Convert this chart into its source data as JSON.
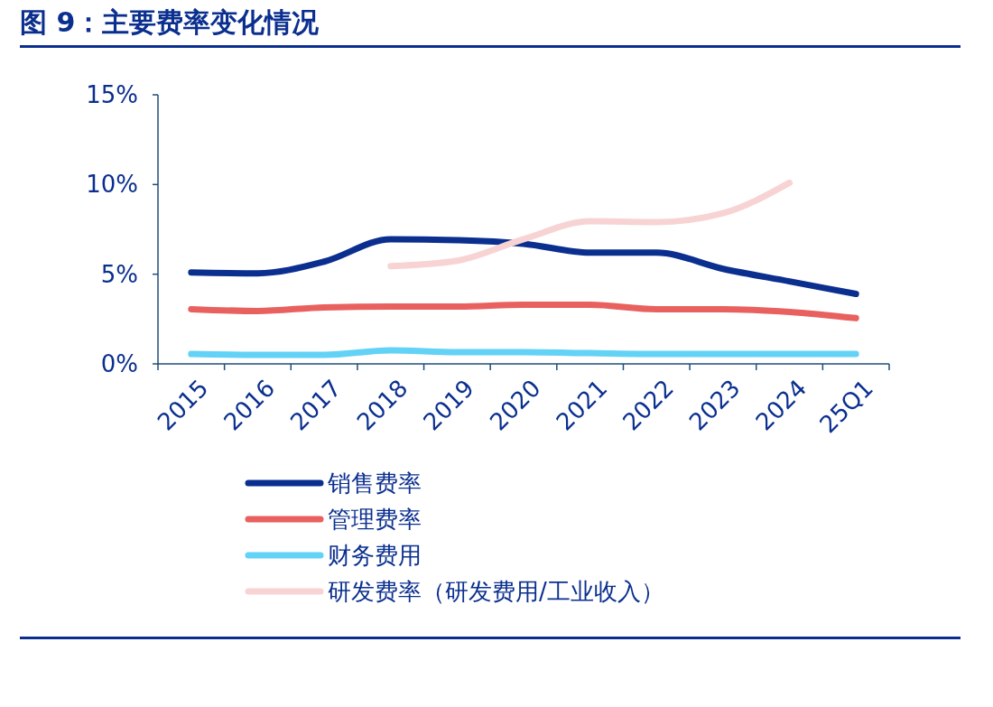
{
  "chart_data": {
    "type": "line",
    "title": "图 9：主要费率变化情况",
    "categories": [
      "2015",
      "2016",
      "2017",
      "2018",
      "2019",
      "2020",
      "2021",
      "2022",
      "2023",
      "2024",
      "25Q1"
    ],
    "series": [
      {
        "name": "销售费率",
        "color": "#0b2f8f",
        "values": [
          5.1,
          5.05,
          5.7,
          6.95,
          6.9,
          6.7,
          6.2,
          6.2,
          5.3,
          4.6,
          3.9
        ]
      },
      {
        "name": "管理费率",
        "color": "#e8615f",
        "values": [
          3.05,
          2.95,
          3.15,
          3.2,
          3.2,
          3.3,
          3.3,
          3.05,
          3.05,
          2.9,
          2.55
        ]
      },
      {
        "name": "财务费用",
        "color": "#62d2f6",
        "values": [
          0.55,
          0.5,
          0.5,
          0.75,
          0.65,
          0.65,
          0.6,
          0.55,
          0.55,
          0.55,
          0.55
        ]
      },
      {
        "name": "研发费率（研发费用/工业收入）",
        "color": "#f8d3d3",
        "values": [
          null,
          null,
          null,
          5.45,
          5.75,
          6.95,
          7.95,
          7.9,
          8.4,
          10.1,
          null
        ]
      }
    ],
    "ylim": [
      0,
      15
    ],
    "yticks": [
      {
        "value": 0,
        "label": "0%"
      },
      {
        "value": 5,
        "label": "5%"
      },
      {
        "value": 10,
        "label": "10%"
      },
      {
        "value": 15,
        "label": "15%"
      }
    ],
    "grid": false,
    "legend": "bottom",
    "marker": "none",
    "line_style": "solid"
  }
}
